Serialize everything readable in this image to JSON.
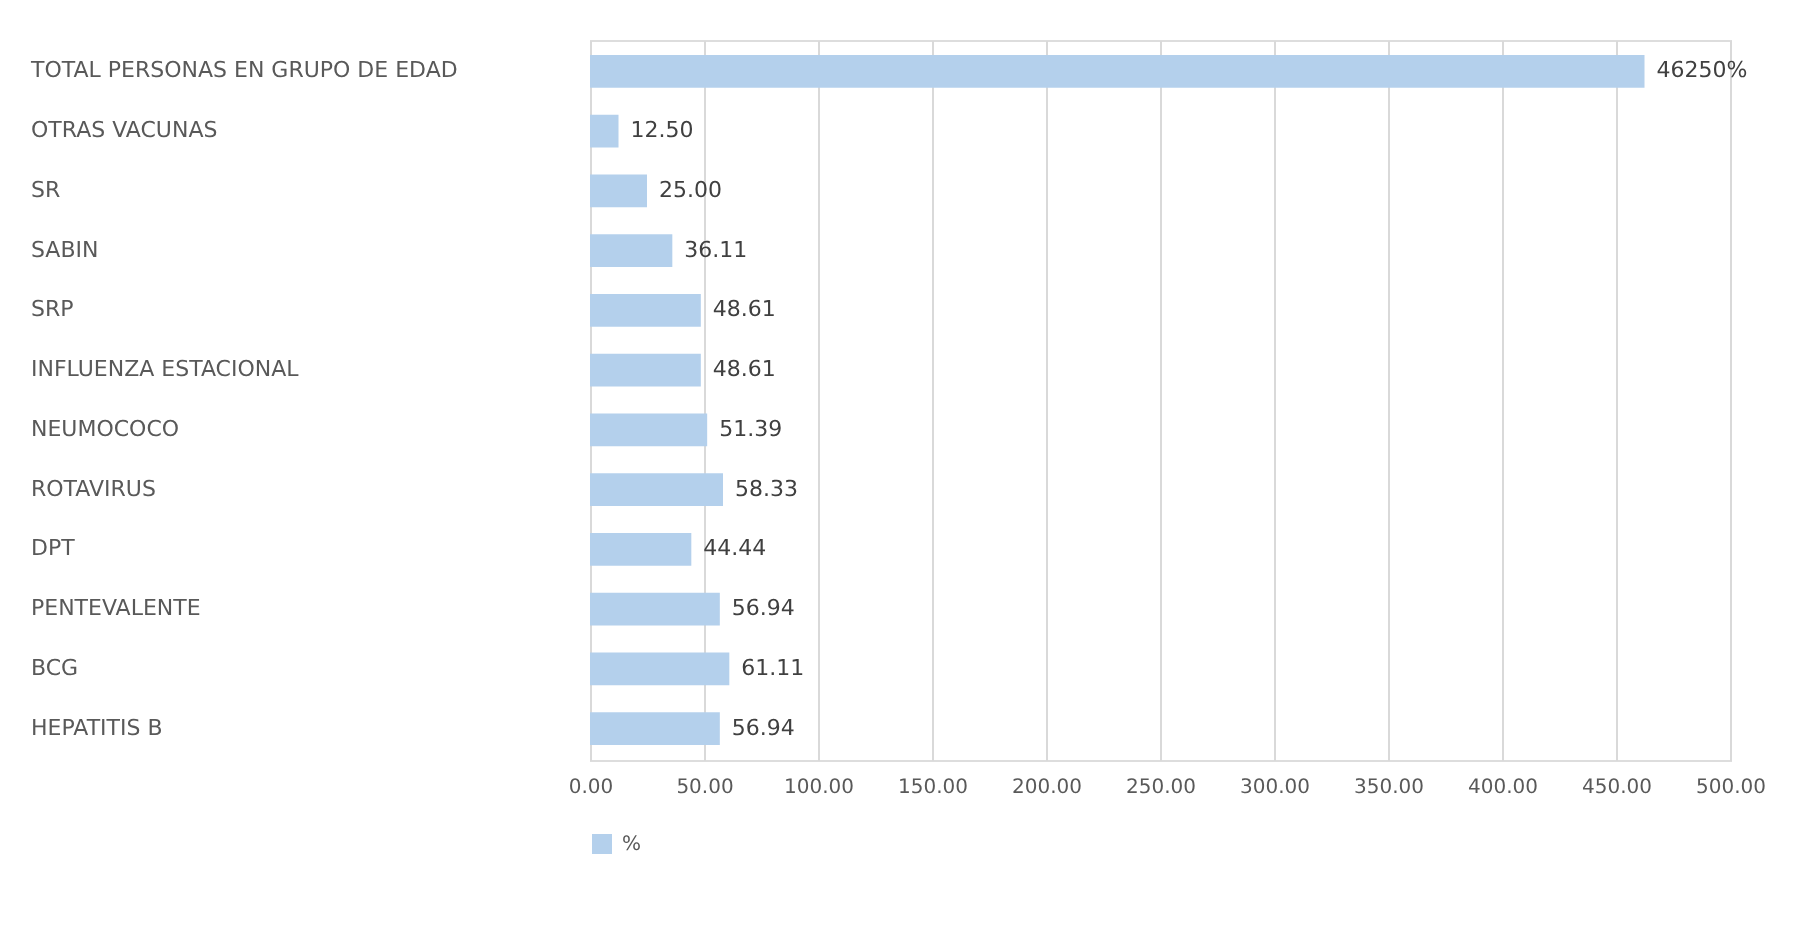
{
  "chart_data": {
    "type": "bar",
    "orientation": "horizontal",
    "categories": [
      "TOTAL PERSONAS EN GRUPO DE EDAD",
      "OTRAS VACUNAS",
      "SR",
      "SABIN",
      "SRP",
      "INFLUENZA ESTACIONAL",
      "NEUMOCOCO",
      "ROTAVIRUS",
      "DPT",
      "PENTEVALENTE",
      "BCG",
      "HEPATITIS B"
    ],
    "series": [
      {
        "name": "%",
        "color": "#b4d0ec",
        "values": [
          462.5,
          12.5,
          25.0,
          36.11,
          48.61,
          48.61,
          51.39,
          58.33,
          44.44,
          56.94,
          61.11,
          56.94
        ],
        "value_labels": [
          "46250%",
          "12.50",
          "25.00",
          "36.11",
          "48.61",
          "48.61",
          "51.39",
          "58.33",
          "44.44",
          "56.94",
          "61.11",
          "56.94"
        ]
      }
    ],
    "xlim": [
      0,
      500
    ],
    "xticks": [
      {
        "value": 0,
        "label": "0.00"
      },
      {
        "value": 50,
        "label": "50.00"
      },
      {
        "value": 100,
        "label": "100.00"
      },
      {
        "value": 150,
        "label": "150.00"
      },
      {
        "value": 200,
        "label": "200.00"
      },
      {
        "value": 250,
        "label": "250.00"
      },
      {
        "value": 300,
        "label": "300.00"
      },
      {
        "value": 350,
        "label": "350.00"
      },
      {
        "value": 400,
        "label": "400.00"
      },
      {
        "value": 450,
        "label": "450.00"
      },
      {
        "value": 500,
        "label": "500.00"
      }
    ],
    "grid": "x",
    "legend": "bottom"
  }
}
